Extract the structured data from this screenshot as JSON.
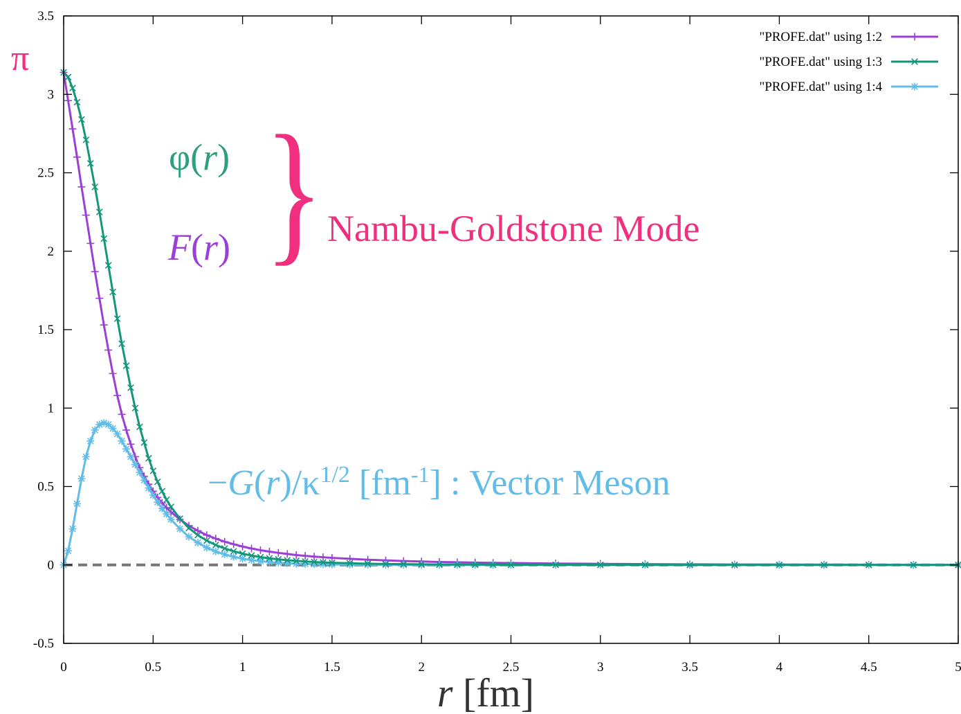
{
  "chart_data": {
    "type": "line",
    "xlabel": {
      "var": "r",
      "unit": " [fm]"
    },
    "xlim": [
      0,
      5
    ],
    "ylim": [
      -0.5,
      3.5
    ],
    "x_tick_labels": [
      "0",
      "0.5",
      "1",
      "1.5",
      "2",
      "2.5",
      "3",
      "3.5",
      "4",
      "4.5",
      "5"
    ],
    "y_tick_labels": [
      "-0.5",
      "0",
      "0.5",
      "1",
      "1.5",
      "2",
      "2.5",
      "3",
      "3.5"
    ],
    "legend_position": "top-right",
    "grid": false,
    "series": [
      {
        "name": "\"PROFE.dat\" using 1:2",
        "color": "#9b3fd6",
        "marker": "plus",
        "x": [
          0,
          0.025,
          0.05,
          0.075,
          0.1,
          0.125,
          0.15,
          0.175,
          0.2,
          0.225,
          0.25,
          0.275,
          0.3,
          0.325,
          0.35,
          0.375,
          0.4,
          0.425,
          0.45,
          0.475,
          0.5,
          0.525,
          0.55,
          0.575,
          0.6,
          0.65,
          0.7,
          0.75,
          0.8,
          0.85,
          0.9,
          0.95,
          1.0,
          1.05,
          1.1,
          1.15,
          1.2,
          1.25,
          1.3,
          1.35,
          1.4,
          1.45,
          1.5,
          1.6,
          1.7,
          1.8,
          1.9,
          2.0,
          2.1,
          2.2,
          2.3,
          2.4,
          2.5,
          2.75,
          3.0,
          3.25,
          3.5,
          3.75,
          4.0,
          4.25,
          4.5,
          4.75,
          5.0
        ],
        "y": [
          3.14,
          2.96,
          2.78,
          2.6,
          2.41,
          2.23,
          2.05,
          1.87,
          1.7,
          1.53,
          1.37,
          1.22,
          1.08,
          0.96,
          0.86,
          0.77,
          0.69,
          0.62,
          0.565,
          0.515,
          0.47,
          0.43,
          0.395,
          0.365,
          0.337,
          0.29,
          0.25,
          0.218,
          0.19,
          0.168,
          0.148,
          0.132,
          0.117,
          0.105,
          0.094,
          0.085,
          0.077,
          0.07,
          0.063,
          0.058,
          0.053,
          0.049,
          0.045,
          0.039,
          0.033,
          0.029,
          0.025,
          0.022,
          0.019,
          0.017,
          0.015,
          0.013,
          0.012,
          0.009,
          0.007,
          0.005,
          0.004,
          0.003,
          0.0025,
          0.002,
          0.0015,
          0.001,
          0.001
        ]
      },
      {
        "name": "\"PROFE.dat\" using 1:3",
        "color": "#13967a",
        "marker": "x",
        "x": [
          0,
          0.025,
          0.05,
          0.075,
          0.1,
          0.125,
          0.15,
          0.175,
          0.2,
          0.225,
          0.25,
          0.275,
          0.3,
          0.325,
          0.35,
          0.375,
          0.4,
          0.425,
          0.45,
          0.475,
          0.5,
          0.525,
          0.55,
          0.575,
          0.6,
          0.65,
          0.7,
          0.75,
          0.8,
          0.85,
          0.9,
          0.95,
          1.0,
          1.05,
          1.1,
          1.15,
          1.2,
          1.25,
          1.3,
          1.35,
          1.4,
          1.45,
          1.5,
          1.6,
          1.7,
          1.8,
          1.9,
          2.0,
          2.1,
          2.2,
          2.3,
          2.4,
          2.5,
          2.75,
          3.0,
          3.25,
          3.5,
          3.75,
          4.0,
          4.25,
          4.5,
          4.75,
          5.0
        ],
        "y": [
          3.14,
          3.11,
          3.04,
          2.95,
          2.84,
          2.71,
          2.56,
          2.41,
          2.25,
          2.08,
          1.91,
          1.74,
          1.57,
          1.41,
          1.27,
          1.13,
          1.0,
          0.88,
          0.78,
          0.68,
          0.6,
          0.53,
          0.47,
          0.415,
          0.37,
          0.295,
          0.235,
          0.19,
          0.155,
          0.127,
          0.105,
          0.087,
          0.072,
          0.06,
          0.05,
          0.042,
          0.036,
          0.03,
          0.026,
          0.022,
          0.019,
          0.016,
          0.014,
          0.011,
          0.008,
          0.006,
          0.005,
          0.004,
          0.003,
          0.0025,
          0.002,
          0.0015,
          0.001,
          0.001,
          0.0005,
          0.0003,
          0.0002,
          0.0001,
          0,
          0,
          0,
          0,
          0
        ]
      },
      {
        "name": "\"PROFE.dat\" using 1:4",
        "color": "#62bce8",
        "marker": "star",
        "x": [
          0,
          0.025,
          0.05,
          0.075,
          0.1,
          0.125,
          0.15,
          0.175,
          0.2,
          0.225,
          0.25,
          0.275,
          0.3,
          0.325,
          0.35,
          0.375,
          0.4,
          0.425,
          0.45,
          0.475,
          0.5,
          0.525,
          0.55,
          0.575,
          0.6,
          0.65,
          0.7,
          0.75,
          0.8,
          0.85,
          0.9,
          0.95,
          1.0,
          1.05,
          1.1,
          1.15,
          1.2,
          1.25,
          1.3,
          1.35,
          1.4,
          1.45,
          1.5,
          1.6,
          1.7,
          1.8,
          1.9,
          2.0,
          2.1,
          2.2,
          2.3,
          2.4,
          2.5,
          2.75,
          3.0,
          3.25,
          3.5,
          3.75,
          4.0,
          4.25,
          4.5,
          4.75,
          5.0
        ],
        "y": [
          0,
          0.09,
          0.23,
          0.39,
          0.55,
          0.69,
          0.79,
          0.86,
          0.895,
          0.905,
          0.895,
          0.87,
          0.835,
          0.79,
          0.74,
          0.69,
          0.64,
          0.59,
          0.54,
          0.49,
          0.445,
          0.4,
          0.36,
          0.325,
          0.29,
          0.23,
          0.18,
          0.142,
          0.11,
          0.086,
          0.067,
          0.052,
          0.04,
          0.031,
          0.024,
          0.018,
          0.014,
          0.011,
          0.008,
          0.006,
          0.005,
          0.004,
          0.003,
          0.002,
          0.001,
          0.001,
          0,
          0,
          0,
          0,
          0,
          0,
          0,
          0,
          0,
          0,
          0,
          0,
          0,
          0,
          0,
          0,
          0
        ]
      }
    ],
    "reference_line": {
      "y": 0,
      "style": "dashed",
      "color": "#777777"
    },
    "annotations": {
      "pi": {
        "text": "π",
        "color": "#f0307e"
      },
      "phi": {
        "sym": "φ",
        "open": "(",
        "var": "r",
        "close": ")",
        "color": "#2f9e7e"
      },
      "F": {
        "sym": "F",
        "open": "(",
        "var": "r",
        "close": ")",
        "color": "#9b3fd6"
      },
      "brace": {
        "text": "}",
        "color": "#f0307e"
      },
      "nambu": {
        "text": "Nambu-Goldstone Mode",
        "color": "#f0307e"
      },
      "vector": {
        "minus": "−",
        "G": "G",
        "open": "(",
        "var": "r",
        "close": ")",
        "slash": "/",
        "kappa": "κ",
        "exp": "1/2",
        "unit_pre": " [fm",
        "unit_exp": "-1",
        "unit_post": "] : Vector Meson",
        "color": "#62bce8"
      }
    }
  }
}
